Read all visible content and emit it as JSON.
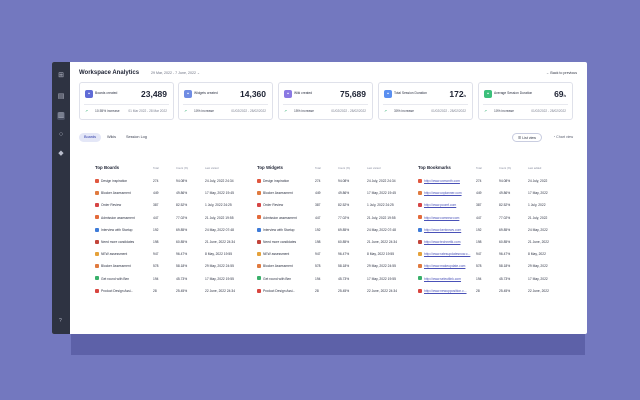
{
  "header": {
    "title": "Workspace Analytics",
    "date_range": "29 Mar, 2022 - 7 June, 2022",
    "back_label": "Back to previous"
  },
  "rail_icons": [
    "grid-icon",
    "document-icon",
    "boards-icon",
    "chat-icon",
    "bookmark-icon"
  ],
  "help": "?",
  "kpis": [
    {
      "label": "Boards created",
      "value": "23,489",
      "unit": "",
      "trend": "10.55% increase",
      "dates": "01 Mar 2022 - 28 Mar 2022",
      "color": "#5f6bd6"
    },
    {
      "label": "Widgets created",
      "value": "14,360",
      "unit": "",
      "trend": "10% increase",
      "dates": "01/02/2022 - 28/02/2022",
      "color": "#6f8ce3"
    },
    {
      "label": "Wiki created",
      "value": "75,689",
      "unit": "",
      "trend": "15% increase",
      "dates": "01/02/2022 - 28/02/2022",
      "color": "#8a79e3"
    },
    {
      "label": "Total Session Duration",
      "value": "172",
      "unit": "h",
      "trend": "30% increase",
      "dates": "01/02/2022 - 28/02/2022",
      "color": "#5a8ff0"
    },
    {
      "label": "Average Session Duration",
      "value": "69",
      "unit": "h",
      "trend": "10% increase",
      "dates": "01/02/2022 - 28/02/2022",
      "color": "#3bbf7a"
    }
  ],
  "tabs": [
    "Boards",
    "Wikis",
    "Session Log"
  ],
  "list_view": "List view",
  "chart_view": "Chart view",
  "columns": {
    "total": "Total",
    "count": "Count (%)",
    "last_visited": "Last visited",
    "last_added": "Last added"
  },
  "top_boards": {
    "title": "Top Boards",
    "rows": [
      {
        "name": "Design inspiration",
        "total": "274",
        "pct": "94.08%",
        "date": "24 July, 2022 24:34",
        "color": "#e0573f"
      },
      {
        "name": "Blocker Assessment",
        "total": "449",
        "pct": "49.86%",
        "date": "17 May, 2022 19:45",
        "color": "#e07a3f"
      },
      {
        "name": "Order Review",
        "total": "387",
        "pct": "82.52%",
        "date": "1 July, 2022 24:25",
        "color": "#d64545"
      },
      {
        "name": "Admission assessment",
        "total": "447",
        "pct": "77.02%",
        "date": "21 July, 2022 19:55",
        "color": "#e36a3a"
      },
      {
        "name": "Interview with Startup",
        "total": "192",
        "pct": "69.85%",
        "date": "24 May, 2022 07:48",
        "color": "#3e7bd8"
      },
      {
        "name": "Need more candidates",
        "total": "198",
        "pct": "60.85%",
        "date": "21 June, 2022 24:34",
        "color": "#c2443a"
      },
      {
        "name": "NEW assessment",
        "total": "947",
        "pct": "96.47%",
        "date": "8 May, 2022 19:55",
        "color": "#e5a13a"
      },
      {
        "name": "Blocker Assessment",
        "total": "578",
        "pct": "58.18%",
        "date": "29 May, 2022 24:55",
        "color": "#e07a3f"
      },
      {
        "name": "Get round with Ben",
        "total": "194",
        "pct": "45.73%",
        "date": "17 May, 2022 19:55",
        "color": "#39b06a"
      },
      {
        "name": "Product Design Assi...",
        "total": "28",
        "pct": "25.45%",
        "date": "22 June, 2022 24:34",
        "color": "#d8453f"
      }
    ]
  },
  "top_widgets": {
    "title": "Top Widgets",
    "rows": [
      {
        "name": "Design inspiration",
        "total": "274",
        "pct": "94.08%",
        "date": "24 July, 2022 24:34",
        "color": "#e0573f"
      },
      {
        "name": "Blocker Assessment",
        "total": "449",
        "pct": "49.86%",
        "date": "17 May, 2022 19:45",
        "color": "#e07a3f"
      },
      {
        "name": "Order Review",
        "total": "387",
        "pct": "82.52%",
        "date": "1 July, 2022 24:25",
        "color": "#d64545"
      },
      {
        "name": "Admission assessment",
        "total": "447",
        "pct": "77.02%",
        "date": "21 July, 2022 19:55",
        "color": "#e36a3a"
      },
      {
        "name": "Interview with Startup",
        "total": "192",
        "pct": "69.85%",
        "date": "24 May, 2022 07:48",
        "color": "#3e7bd8"
      },
      {
        "name": "Need more candidates",
        "total": "198",
        "pct": "60.85%",
        "date": "21 June, 2022 24:34",
        "color": "#c2443a"
      },
      {
        "name": "NEW assessment",
        "total": "947",
        "pct": "96.47%",
        "date": "8 May, 2022 19:55",
        "color": "#e5a13a"
      },
      {
        "name": "Blocker Assessment",
        "total": "578",
        "pct": "58.18%",
        "date": "29 May, 2022 24:55",
        "color": "#e07a3f"
      },
      {
        "name": "Get round with Ben",
        "total": "194",
        "pct": "45.73%",
        "date": "17 May, 2022 19:55",
        "color": "#39b06a"
      },
      {
        "name": "Product Design Assi...",
        "total": "28",
        "pct": "25.45%",
        "date": "22 June, 2022 24:34",
        "color": "#d8453f"
      }
    ]
  },
  "top_bookmarks": {
    "title": "Top Bookmarks",
    "rows": [
      {
        "name": "http://www.uxmonth.com",
        "total": "274",
        "pct": "94.08%",
        "date": "24 July, 2022",
        "color": "#e0573f"
      },
      {
        "name": "http://www.uxplanner.com",
        "total": "449",
        "pct": "49.86%",
        "date": "17 May, 2022",
        "color": "#e07a3f"
      },
      {
        "name": "http://www.pcomf.com",
        "total": "387",
        "pct": "82.52%",
        "date": "1 July, 2022",
        "color": "#d64545"
      },
      {
        "name": "http://www.comnew.com",
        "total": "447",
        "pct": "77.02%",
        "date": "21 July, 2022",
        "color": "#e36a3a"
      },
      {
        "name": "http://www.kentnews.com",
        "total": "192",
        "pct": "69.85%",
        "date": "24 May, 2022",
        "color": "#3e7bd8"
      },
      {
        "name": "http://www.technetik.com",
        "total": "198",
        "pct": "60.85%",
        "date": "21 June, 2022",
        "color": "#c2443a"
      },
      {
        "name": "http://www.ratesupdatesnow.c...",
        "total": "947",
        "pct": "96.47%",
        "date": "8 May, 2022",
        "color": "#e5a13a"
      },
      {
        "name": "http://www.makeupdate.com",
        "total": "578",
        "pct": "58.18%",
        "date": "29 May, 2022",
        "color": "#e07a3f"
      },
      {
        "name": "http://www.seleutlink.com",
        "total": "194",
        "pct": "45.73%",
        "date": "17 May, 2022",
        "color": "#39b06a"
      },
      {
        "name": "http://www.newupposition.c...",
        "total": "28",
        "pct": "25.45%",
        "date": "22 June, 2022",
        "color": "#d8453f"
      }
    ]
  }
}
